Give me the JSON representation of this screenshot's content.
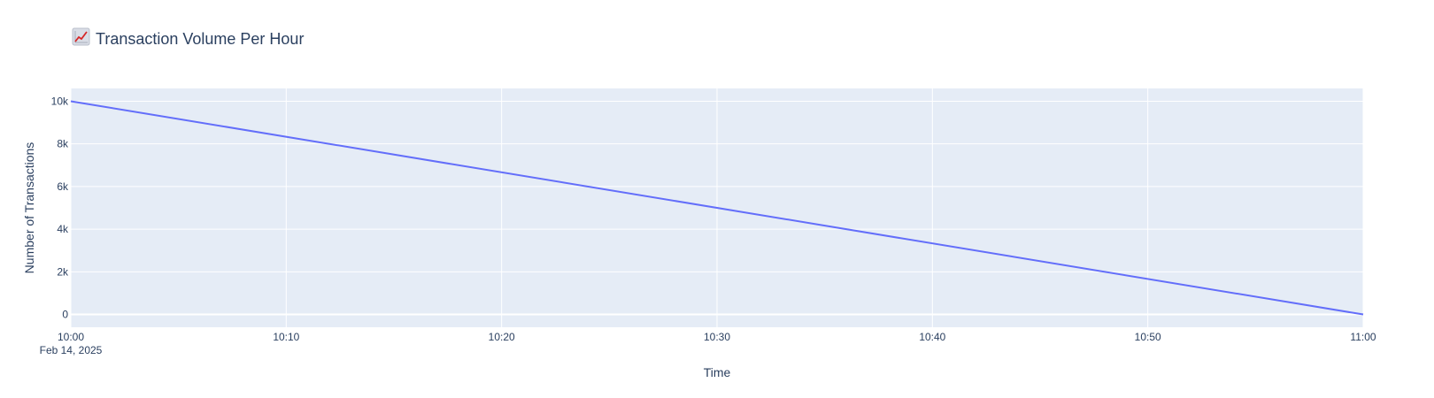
{
  "chart_data": {
    "type": "line",
    "title": "Transaction Volume Per Hour",
    "title_icon": "chart-increasing-icon",
    "xlabel": "Time",
    "ylabel": "Number of Transactions",
    "x_tick_labels": [
      "10:00",
      "10:10",
      "10:20",
      "10:30",
      "10:40",
      "10:50",
      "11:00"
    ],
    "x_date_label": "Feb 14, 2025",
    "y_tick_labels": [
      "0",
      "2k",
      "4k",
      "6k",
      "8k",
      "10k"
    ],
    "y_ticks": [
      0,
      2000,
      4000,
      6000,
      8000,
      10000
    ],
    "xlim": [
      "2025-02-14 10:00",
      "2025-02-14 11:00"
    ],
    "ylim": [
      -600,
      10600
    ],
    "grid": true,
    "legend": "none",
    "series": [
      {
        "color": "#636efa",
        "x": [
          "2025-02-14 10:00",
          "2025-02-14 11:00"
        ],
        "y": [
          10000,
          0
        ]
      }
    ],
    "plot_background": "#e5ecf6",
    "grid_color": "#ffffff",
    "text_color": "#2a3f5f"
  }
}
